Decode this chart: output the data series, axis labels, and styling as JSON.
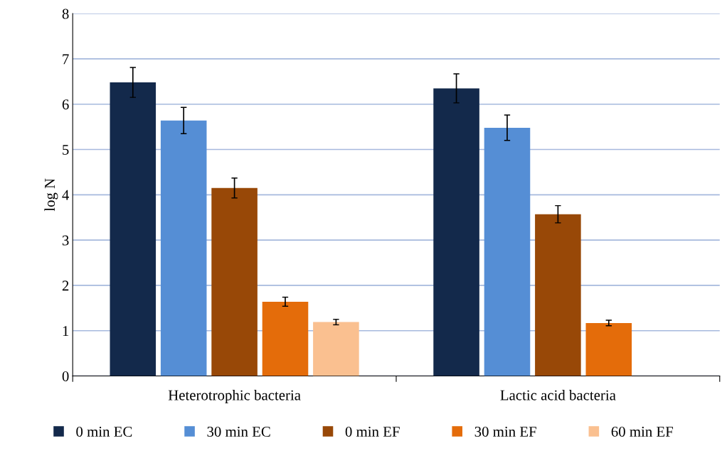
{
  "chart_data": {
    "type": "bar",
    "ylabel": "log N",
    "categories": [
      "Heterotrophic bacteria",
      "Lactic acid bacteria"
    ],
    "series": [
      {
        "name": "0 min EC",
        "color": "#13294b",
        "values": [
          6.48,
          6.35
        ],
        "errors": [
          0.33,
          0.32
        ]
      },
      {
        "name": "30 min EC",
        "color": "#558ed5",
        "values": [
          5.64,
          5.48
        ],
        "errors": [
          0.29,
          0.28
        ]
      },
      {
        "name": "0 min EF",
        "color": "#984807",
        "values": [
          4.15,
          3.57
        ],
        "errors": [
          0.22,
          0.19
        ]
      },
      {
        "name": "30 min EF",
        "color": "#e46c0a",
        "values": [
          1.64,
          1.17
        ],
        "errors": [
          0.1,
          0.06
        ]
      },
      {
        "name": "60 min EF",
        "color": "#fac090",
        "values": [
          1.19,
          null
        ],
        "errors": [
          0.06,
          null
        ]
      }
    ],
    "ylim": [
      0,
      8
    ],
    "yticks": [
      0,
      1,
      2,
      3,
      4,
      5,
      6,
      7,
      8
    ],
    "grid": "y",
    "legend": "bottom"
  }
}
